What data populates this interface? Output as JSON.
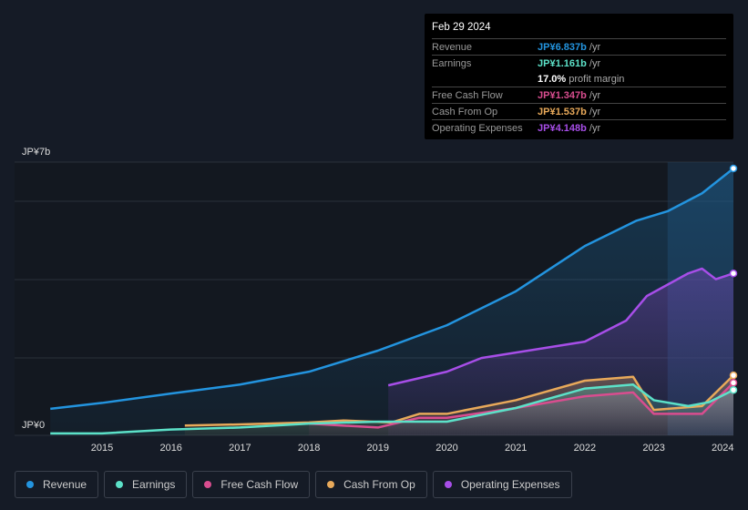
{
  "tooltip": {
    "date": "Feb 29 2024",
    "rows": [
      {
        "label": "Revenue",
        "value": "JP¥6.837b",
        "unit": "/yr",
        "color": "#2394df"
      },
      {
        "label": "Earnings",
        "value": "JP¥1.161b",
        "unit": "/yr",
        "color": "#5ce1c8"
      },
      {
        "label": "",
        "value": "17.0%",
        "unit": "profit margin",
        "color": "#ffffff"
      },
      {
        "label": "Free Cash Flow",
        "value": "JP¥1.347b",
        "unit": "/yr",
        "color": "#d94d8f"
      },
      {
        "label": "Cash From Op",
        "value": "JP¥1.537b",
        "unit": "/yr",
        "color": "#e8a95a"
      },
      {
        "label": "Operating Expenses",
        "value": "JP¥4.148b",
        "unit": "/yr",
        "color": "#a74ee8"
      }
    ]
  },
  "chart_data": {
    "type": "line",
    "ylim": [
      0,
      7
    ],
    "y_tick_labels": [
      "JP¥0",
      "JP¥7b"
    ],
    "x_ticks": [
      2015,
      2016,
      2017,
      2018,
      2019,
      2020,
      2021,
      2022,
      2023,
      2024
    ],
    "highlight_from": 2023.2,
    "series": [
      {
        "name": "Revenue",
        "color": "#2394df",
        "x": [
          2014.25,
          2015,
          2016,
          2017,
          2018,
          2019,
          2020,
          2021,
          2022,
          2022.75,
          2023.2,
          2023.7,
          2024.17
        ],
        "y": [
          0.68,
          0.83,
          1.07,
          1.3,
          1.63,
          2.17,
          2.82,
          3.69,
          4.85,
          5.5,
          5.74,
          6.2,
          6.837
        ]
      },
      {
        "name": "Earnings",
        "color": "#5ce1c8",
        "x": [
          2014.25,
          2015,
          2016,
          2017,
          2018,
          2019,
          2020,
          2021,
          2022,
          2022.7,
          2023,
          2023.5,
          2023.8,
          2024.17
        ],
        "y": [
          0.05,
          0.05,
          0.15,
          0.2,
          0.3,
          0.35,
          0.35,
          0.7,
          1.2,
          1.3,
          0.9,
          0.75,
          0.85,
          1.161
        ]
      },
      {
        "name": "Free Cash Flow",
        "color": "#d94d8f",
        "x": [
          2018,
          2019,
          2019.6,
          2020,
          2021,
          2022,
          2022.7,
          2023,
          2023.7,
          2024.17
        ],
        "y": [
          0.3,
          0.2,
          0.45,
          0.45,
          0.7,
          1.0,
          1.1,
          0.55,
          0.55,
          1.347
        ]
      },
      {
        "name": "Cash From Op",
        "color": "#e8a95a",
        "x": [
          2016.2,
          2017,
          2018,
          2018.5,
          2019.2,
          2019.6,
          2020,
          2021,
          2022,
          2022.7,
          2023,
          2023.7,
          2024.17
        ],
        "y": [
          0.25,
          0.28,
          0.33,
          0.38,
          0.33,
          0.55,
          0.55,
          0.9,
          1.4,
          1.5,
          0.65,
          0.75,
          1.537
        ]
      },
      {
        "name": "Operating Expenses",
        "color": "#a74ee8",
        "x": [
          2019.15,
          2020,
          2020.5,
          2021,
          2022,
          2022.6,
          2022.9,
          2023.5,
          2023.7,
          2023.9,
          2024.17
        ],
        "y": [
          1.28,
          1.63,
          1.98,
          2.12,
          2.4,
          2.94,
          3.57,
          4.15,
          4.27,
          4.0,
          4.148
        ]
      }
    ]
  },
  "legend": [
    "Revenue",
    "Earnings",
    "Free Cash Flow",
    "Cash From Op",
    "Operating Expenses"
  ]
}
